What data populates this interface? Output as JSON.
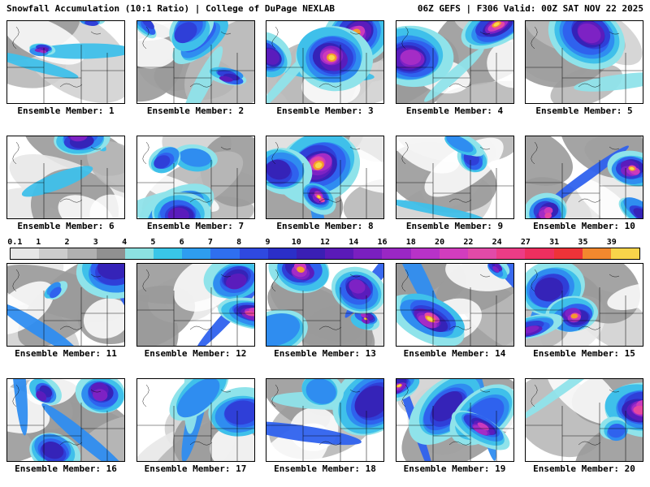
{
  "header": {
    "title_left": "Snowfall Accumulation (10:1 Ratio) | College of DuPage NEXLAB",
    "title_right": "06Z GEFS | F306 Valid: 00Z SAT NOV 22 2025"
  },
  "panels": [
    {
      "member": 1,
      "label": "Ensemble Member: 1"
    },
    {
      "member": 2,
      "label": "Ensemble Member: 2"
    },
    {
      "member": 3,
      "label": "Ensemble Member: 3"
    },
    {
      "member": 4,
      "label": "Ensemble Member: 4"
    },
    {
      "member": 5,
      "label": "Ensemble Member: 5"
    },
    {
      "member": 6,
      "label": "Ensemble Member: 6"
    },
    {
      "member": 7,
      "label": "Ensemble Member: 7"
    },
    {
      "member": 8,
      "label": "Ensemble Member: 8"
    },
    {
      "member": 9,
      "label": "Ensemble Member: 9"
    },
    {
      "member": 10,
      "label": "Ensemble Member: 10"
    },
    {
      "member": 11,
      "label": "Ensemble Member: 11"
    },
    {
      "member": 12,
      "label": "Ensemble Member: 12"
    },
    {
      "member": 13,
      "label": "Ensemble Member: 13"
    },
    {
      "member": 14,
      "label": "Ensemble Member: 14"
    },
    {
      "member": 15,
      "label": "Ensemble Member: 15"
    },
    {
      "member": 16,
      "label": "Ensemble Member: 16"
    },
    {
      "member": 17,
      "label": "Ensemble Member: 17"
    },
    {
      "member": 18,
      "label": "Ensemble Member: 18"
    },
    {
      "member": 19,
      "label": "Ensemble Member: 19"
    },
    {
      "member": 20,
      "label": "Ensemble Member: 20"
    }
  ],
  "colorbar": {
    "ticks": [
      "0.1",
      "1",
      "2",
      "3",
      "4",
      "5",
      "6",
      "7",
      "8",
      "9",
      "10",
      "12",
      "14",
      "16",
      "18",
      "20",
      "22",
      "24",
      "27",
      "31",
      "35",
      "39"
    ],
    "colors": [
      "#e6e6e6",
      "#cccccc",
      "#b0b0b0",
      "#909090",
      "#8ce1e1",
      "#39c6e8",
      "#2e9df0",
      "#2f6ff0",
      "#2f49e0",
      "#2b2fc8",
      "#3a1fb4",
      "#5a1ab8",
      "#7a1fc0",
      "#9a27c4",
      "#b832c8",
      "#d23dbe",
      "#e24aa8",
      "#ec3c86",
      "#ee2f5f",
      "#ee3338",
      "#f2882e",
      "#f8d44a"
    ]
  },
  "map_palette": {
    "grays": [
      "#e8e8e8",
      "#d2d2d2",
      "#b8b8b8",
      "#9a9a9a"
    ],
    "levels": [
      "#8fe3ea",
      "#3fc0ea",
      "#2f8df0",
      "#2f62ee",
      "#2f3fd8",
      "#3523b8",
      "#5a1cbc",
      "#7d22c4",
      "#a42cc6",
      "#cc3abc",
      "#e648a0"
    ],
    "hot": [
      "#ee4040",
      "#f59a2e",
      "#f8d84a"
    ],
    "border_color": "#000000"
  }
}
